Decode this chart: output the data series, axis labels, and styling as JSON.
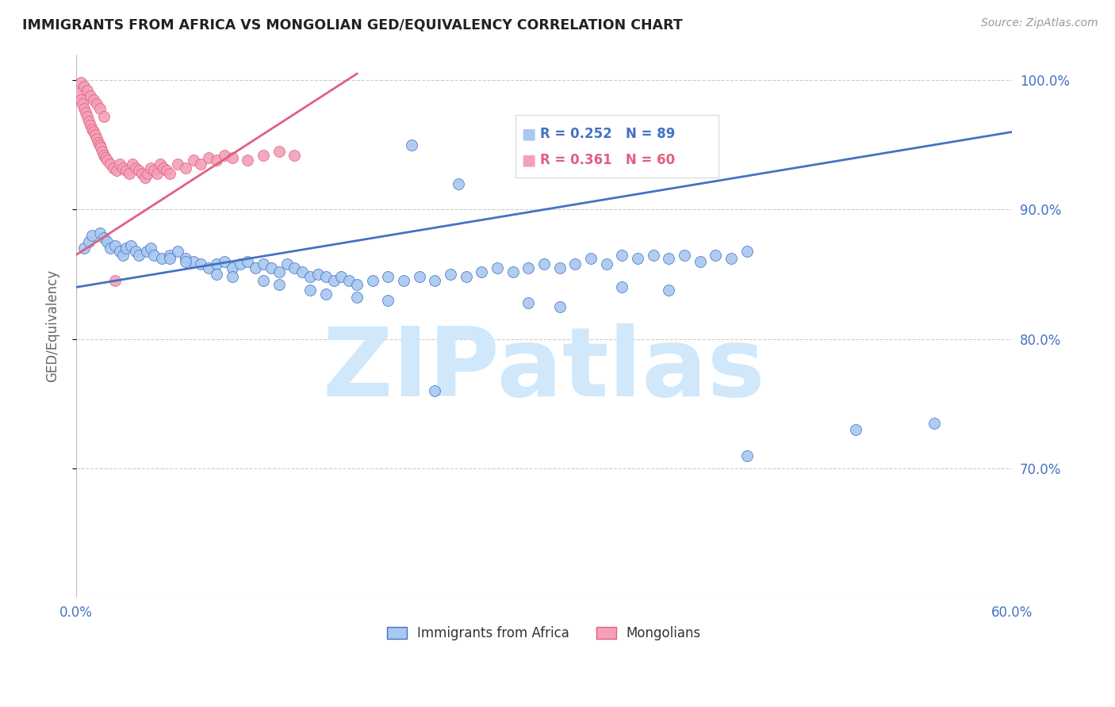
{
  "title": "IMMIGRANTS FROM AFRICA VS MONGOLIAN GED/EQUIVALENCY CORRELATION CHART",
  "source": "Source: ZipAtlas.com",
  "ylabel": "GED/Equivalency",
  "xlim": [
    0.0,
    0.6
  ],
  "ylim": [
    0.6,
    1.02
  ],
  "yticks": [
    0.7,
    0.8,
    0.9,
    1.0
  ],
  "ytick_labels": [
    "70.0%",
    "80.0%",
    "90.0%",
    "100.0%"
  ],
  "xticks": [
    0.0,
    0.1,
    0.2,
    0.3,
    0.4,
    0.5,
    0.6
  ],
  "blue_R": 0.252,
  "blue_N": 89,
  "pink_R": 0.361,
  "pink_N": 60,
  "blue_color": "#A8C8F0",
  "pink_color": "#F4A0B8",
  "blue_line_color": "#4472C4",
  "pink_line_color": "#E06080",
  "legend_blue_label": "Immigrants from Africa",
  "legend_pink_label": "Mongolians",
  "background_color": "#FFFFFF",
  "grid_color": "#CCCCCC",
  "watermark_text": "ZIPatlas",
  "watermark_color": "#D0E8FA",
  "blue_scatter_x": [
    0.005,
    0.008,
    0.01,
    0.015,
    0.018,
    0.02,
    0.022,
    0.025,
    0.028,
    0.03,
    0.032,
    0.035,
    0.038,
    0.04,
    0.045,
    0.048,
    0.05,
    0.055,
    0.06,
    0.065,
    0.07,
    0.075,
    0.08,
    0.085,
    0.09,
    0.095,
    0.1,
    0.105,
    0.11,
    0.115,
    0.12,
    0.125,
    0.13,
    0.135,
    0.14,
    0.145,
    0.15,
    0.155,
    0.16,
    0.165,
    0.17,
    0.175,
    0.18,
    0.19,
    0.2,
    0.21,
    0.22,
    0.23,
    0.24,
    0.25,
    0.26,
    0.27,
    0.28,
    0.29,
    0.3,
    0.31,
    0.32,
    0.33,
    0.34,
    0.35,
    0.36,
    0.37,
    0.38,
    0.39,
    0.4,
    0.41,
    0.42,
    0.43,
    0.35,
    0.38,
    0.29,
    0.31,
    0.18,
    0.2,
    0.15,
    0.16,
    0.12,
    0.13,
    0.09,
    0.1,
    0.06,
    0.07,
    0.23,
    0.55,
    0.43,
    0.5,
    0.215,
    0.245
  ],
  "blue_scatter_y": [
    0.87,
    0.875,
    0.88,
    0.882,
    0.878,
    0.875,
    0.87,
    0.872,
    0.868,
    0.865,
    0.87,
    0.872,
    0.868,
    0.865,
    0.868,
    0.87,
    0.865,
    0.862,
    0.865,
    0.868,
    0.862,
    0.86,
    0.858,
    0.855,
    0.858,
    0.86,
    0.855,
    0.858,
    0.86,
    0.855,
    0.858,
    0.855,
    0.852,
    0.858,
    0.855,
    0.852,
    0.848,
    0.85,
    0.848,
    0.845,
    0.848,
    0.845,
    0.842,
    0.845,
    0.848,
    0.845,
    0.848,
    0.845,
    0.85,
    0.848,
    0.852,
    0.855,
    0.852,
    0.855,
    0.858,
    0.855,
    0.858,
    0.862,
    0.858,
    0.865,
    0.862,
    0.865,
    0.862,
    0.865,
    0.86,
    0.865,
    0.862,
    0.868,
    0.84,
    0.838,
    0.828,
    0.825,
    0.832,
    0.83,
    0.838,
    0.835,
    0.845,
    0.842,
    0.85,
    0.848,
    0.862,
    0.86,
    0.76,
    0.735,
    0.71,
    0.73,
    0.95,
    0.92
  ],
  "pink_scatter_x": [
    0.002,
    0.003,
    0.004,
    0.005,
    0.006,
    0.007,
    0.008,
    0.009,
    0.01,
    0.011,
    0.012,
    0.013,
    0.014,
    0.015,
    0.016,
    0.017,
    0.018,
    0.019,
    0.02,
    0.022,
    0.024,
    0.026,
    0.028,
    0.03,
    0.032,
    0.034,
    0.036,
    0.038,
    0.04,
    0.042,
    0.044,
    0.046,
    0.048,
    0.05,
    0.052,
    0.054,
    0.056,
    0.058,
    0.06,
    0.065,
    0.07,
    0.075,
    0.08,
    0.085,
    0.09,
    0.095,
    0.1,
    0.11,
    0.12,
    0.13,
    0.14,
    0.003,
    0.005,
    0.007,
    0.009,
    0.011,
    0.013,
    0.015,
    0.018,
    0.025
  ],
  "pink_scatter_y": [
    0.99,
    0.985,
    0.982,
    0.978,
    0.975,
    0.972,
    0.968,
    0.965,
    0.962,
    0.96,
    0.958,
    0.955,
    0.952,
    0.95,
    0.948,
    0.945,
    0.942,
    0.94,
    0.938,
    0.935,
    0.932,
    0.93,
    0.935,
    0.932,
    0.93,
    0.928,
    0.935,
    0.932,
    0.93,
    0.928,
    0.925,
    0.928,
    0.932,
    0.93,
    0.928,
    0.935,
    0.932,
    0.93,
    0.928,
    0.935,
    0.932,
    0.938,
    0.935,
    0.94,
    0.938,
    0.942,
    0.94,
    0.938,
    0.942,
    0.945,
    0.942,
    0.998,
    0.995,
    0.992,
    0.988,
    0.985,
    0.982,
    0.978,
    0.972,
    0.845
  ],
  "blue_line_x0": 0.0,
  "blue_line_x1": 0.6,
  "blue_line_y0": 0.84,
  "blue_line_y1": 0.96,
  "pink_line_x0": 0.0,
  "pink_line_x1": 0.18,
  "pink_line_y0": 0.865,
  "pink_line_y1": 1.005
}
